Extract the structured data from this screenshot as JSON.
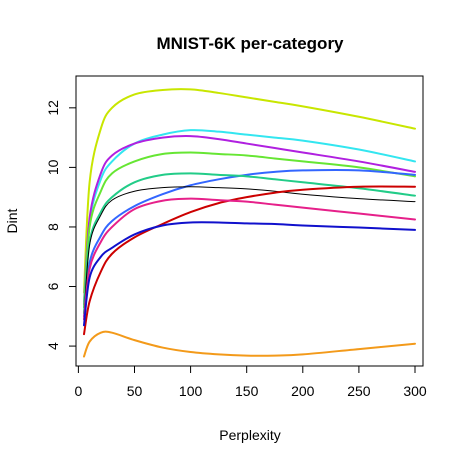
{
  "chart_data": {
    "type": "line",
    "title": "MNIST-6K per-category",
    "xlabel": "Perplexity",
    "ylabel": "Dint",
    "xlim": [
      5,
      300
    ],
    "ylim": [
      3.6,
      12.8
    ],
    "xticks": [
      0,
      50,
      100,
      150,
      200,
      250,
      300
    ],
    "yticks": [
      4,
      6,
      8,
      10,
      12
    ],
    "grid": false,
    "legend": "none",
    "x": [
      5,
      10,
      20,
      30,
      50,
      75,
      100,
      125,
      150,
      175,
      200,
      250,
      300
    ],
    "series": [
      {
        "color": "#c8e600",
        "width": 2,
        "values": [
          5.8,
          9.5,
          11.3,
          12.0,
          12.45,
          12.6,
          12.62,
          12.5,
          12.35,
          12.2,
          12.05,
          11.7,
          11.3
        ]
      },
      {
        "color": "#33e6f0",
        "width": 2,
        "values": [
          5.5,
          8.2,
          9.6,
          10.2,
          10.8,
          11.1,
          11.25,
          11.2,
          11.1,
          11.0,
          10.9,
          10.6,
          10.2
        ]
      },
      {
        "color": "#b020e0",
        "width": 2,
        "values": [
          5.4,
          8.3,
          9.8,
          10.4,
          10.8,
          11.0,
          11.05,
          10.95,
          10.8,
          10.65,
          10.5,
          10.2,
          9.85
        ]
      },
      {
        "color": "#66e633",
        "width": 2,
        "values": [
          5.3,
          8.0,
          9.2,
          9.8,
          10.2,
          10.45,
          10.5,
          10.45,
          10.4,
          10.3,
          10.2,
          10.0,
          9.7
        ]
      },
      {
        "color": "#3366ff",
        "width": 2,
        "values": [
          5.0,
          6.8,
          7.7,
          8.2,
          8.7,
          9.1,
          9.4,
          9.6,
          9.75,
          9.85,
          9.9,
          9.9,
          9.75
        ]
      },
      {
        "color": "#22cc88",
        "width": 2,
        "values": [
          5.1,
          7.5,
          8.5,
          9.0,
          9.5,
          9.75,
          9.8,
          9.75,
          9.7,
          9.6,
          9.5,
          9.3,
          9.05
        ]
      },
      {
        "color": "#000000",
        "width": 1,
        "values": [
          5.0,
          7.4,
          8.4,
          8.9,
          9.2,
          9.32,
          9.35,
          9.32,
          9.28,
          9.2,
          9.1,
          8.95,
          8.85
        ]
      },
      {
        "color": "#cc0000",
        "width": 2,
        "values": [
          4.4,
          5.5,
          6.5,
          7.1,
          7.65,
          8.1,
          8.5,
          8.8,
          9.0,
          9.15,
          9.25,
          9.35,
          9.35
        ]
      },
      {
        "color": "#e6208a",
        "width": 2,
        "values": [
          4.9,
          6.6,
          7.5,
          8.0,
          8.6,
          8.88,
          8.95,
          8.9,
          8.85,
          8.75,
          8.65,
          8.45,
          8.25
        ]
      },
      {
        "color": "#1010cc",
        "width": 2,
        "values": [
          4.7,
          6.3,
          7.0,
          7.3,
          7.75,
          8.05,
          8.15,
          8.15,
          8.12,
          8.1,
          8.05,
          7.98,
          7.9
        ]
      },
      {
        "color": "#f39a1a",
        "width": 2,
        "values": [
          3.65,
          4.15,
          4.45,
          4.45,
          4.2,
          3.95,
          3.8,
          3.72,
          3.68,
          3.68,
          3.72,
          3.9,
          4.08
        ]
      }
    ]
  }
}
